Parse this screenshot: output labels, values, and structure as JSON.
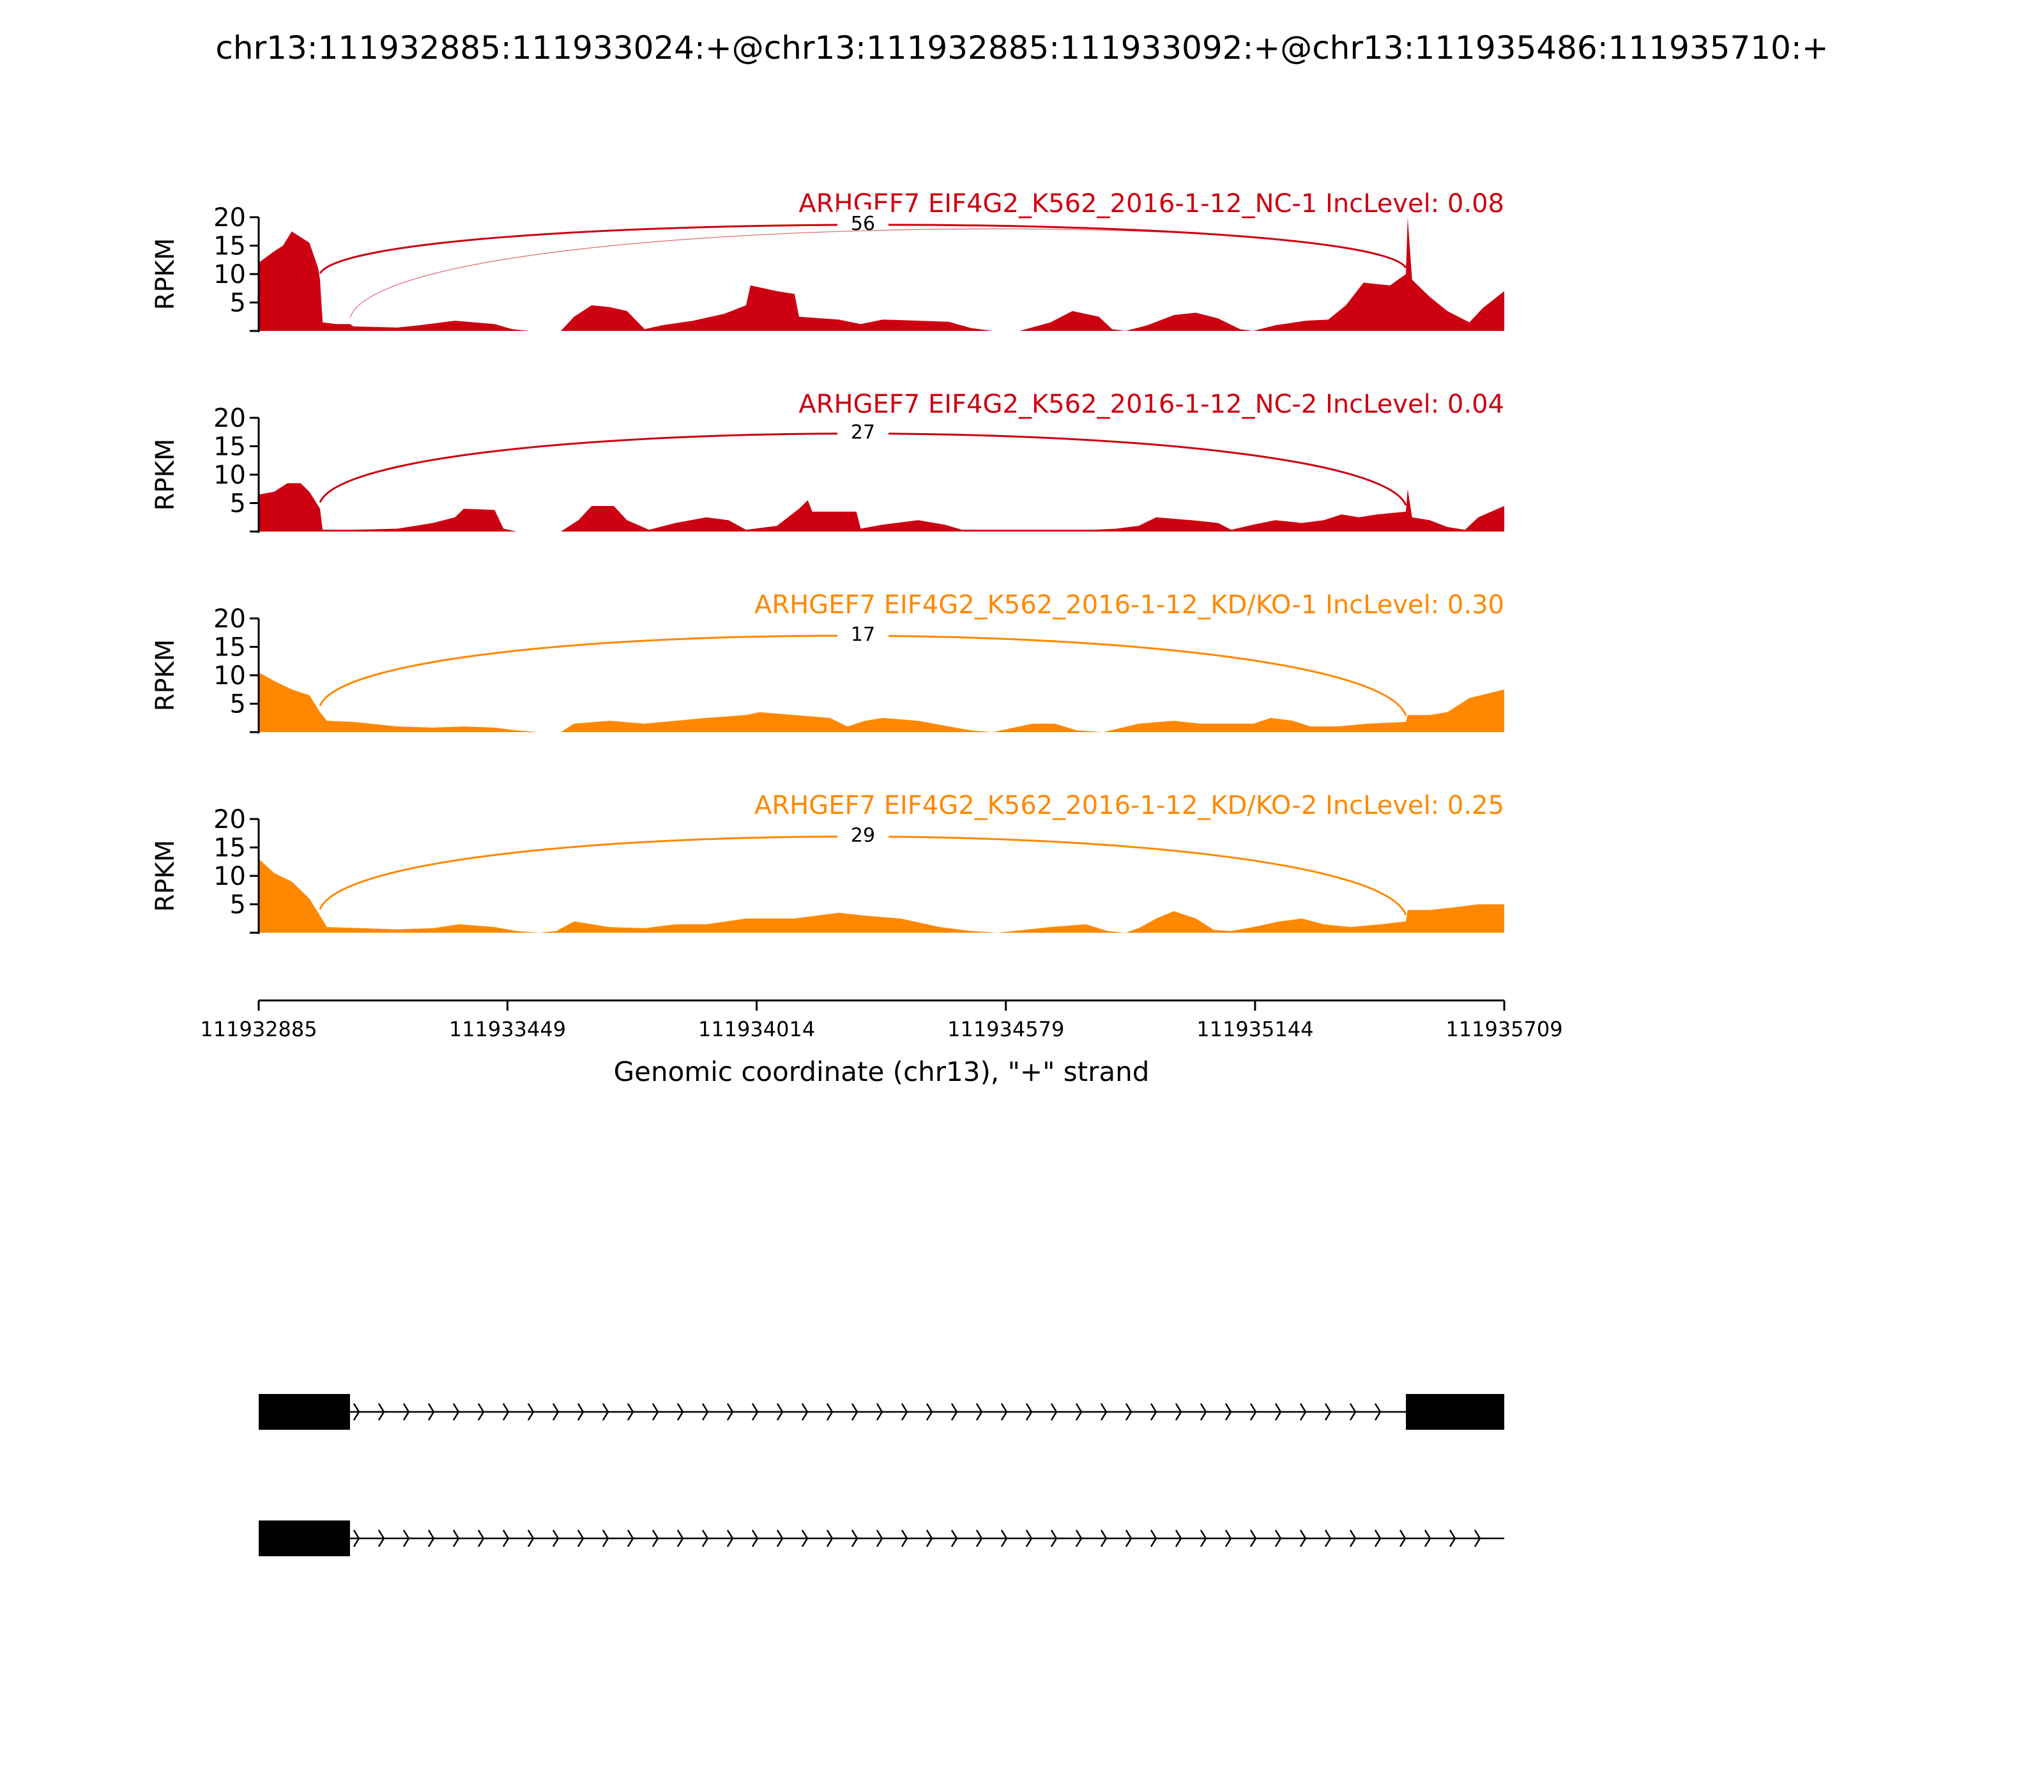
{
  "figure_title": "chr13:111932885:111933024:+@chr13:111932885:111933092:+@chr13:111935486:111935710:+",
  "colors": {
    "nc": "#cc0011",
    "kd": "#ff8800",
    "axis": "#000000",
    "gene_model": "#000000"
  },
  "chart_data": {
    "type": "area",
    "title": "chr13:111932885:111933024:+@chr13:111932885:111933092:+@chr13:111935486:111935710:+",
    "xlabel": "Genomic coordinate (chr13), \"+\" strand",
    "ylabel": "RPKM",
    "xlim": [
      111932885,
      111935709
    ],
    "x_ticks": [
      111932885,
      111933449,
      111934014,
      111934579,
      111935144,
      111935709
    ],
    "x_tick_labels": [
      "111932885",
      "111933449",
      "111934014",
      "111934579",
      "111935144",
      "111935709"
    ],
    "y_ticks": [
      5,
      10,
      15,
      20
    ],
    "y_tick_labels": [
      "5",
      "10",
      "15",
      "20"
    ],
    "ylim": [
      0,
      20
    ],
    "tracks": [
      {
        "label": "ARHGEF7 EIF4G2_K562_2016-1-12_NC-1 IncLevel: 0.08",
        "color": "#cc0011",
        "coverage": [
          [
            111932885,
            12
          ],
          [
            111932920,
            14
          ],
          [
            111932940,
            15
          ],
          [
            111932960,
            17.5
          ],
          [
            111932980,
            16.5
          ],
          [
            111933000,
            15.5
          ],
          [
            111933020,
            11
          ],
          [
            111933024,
            9
          ],
          [
            111933030,
            1.5
          ],
          [
            111933060,
            1.2
          ],
          [
            111933092,
            1.2
          ],
          [
            111933100,
            0.8
          ],
          [
            111933200,
            0.6
          ],
          [
            111933250,
            1.0
          ],
          [
            111933330,
            1.8
          ],
          [
            111933420,
            1.2
          ],
          [
            111933460,
            0.3
          ],
          [
            111933500,
            0
          ],
          [
            111933570,
            0
          ],
          [
            111933600,
            2.5
          ],
          [
            111933640,
            4.5
          ],
          [
            111933680,
            4.2
          ],
          [
            111933720,
            3.5
          ],
          [
            111933760,
            0.3
          ],
          [
            111933800,
            1.0
          ],
          [
            111933870,
            1.8
          ],
          [
            111933940,
            3.0
          ],
          [
            111933990,
            4.5
          ],
          [
            111934000,
            8.0
          ],
          [
            111934060,
            7.0
          ],
          [
            111934100,
            6.5
          ],
          [
            111934110,
            2.5
          ],
          [
            111934200,
            2.0
          ],
          [
            111934250,
            1.2
          ],
          [
            111934300,
            2.0
          ],
          [
            111934380,
            1.8
          ],
          [
            111934450,
            1.6
          ],
          [
            111934500,
            0.5
          ],
          [
            111934550,
            0
          ],
          [
            111934610,
            0
          ],
          [
            111934680,
            1.5
          ],
          [
            111934730,
            3.5
          ],
          [
            111934790,
            2.5
          ],
          [
            111934820,
            0.3
          ],
          [
            111934850,
            0
          ],
          [
            111934900,
            1.0
          ],
          [
            111934960,
            2.8
          ],
          [
            111935010,
            3.2
          ],
          [
            111935060,
            2.2
          ],
          [
            111935110,
            0.3
          ],
          [
            111935140,
            0
          ],
          [
            111935190,
            1.0
          ],
          [
            111935260,
            1.8
          ],
          [
            111935310,
            2.0
          ],
          [
            111935350,
            4.5
          ],
          [
            111935390,
            8.5
          ],
          [
            111935450,
            8.0
          ],
          [
            111935486,
            10
          ],
          [
            111935490,
            20
          ],
          [
            111935500,
            9.0
          ],
          [
            111935540,
            6.0
          ],
          [
            111935580,
            3.5
          ],
          [
            111935630,
            1.5
          ],
          [
            111935660,
            4.0
          ],
          [
            111935709,
            7.0
          ]
        ],
        "junctions": [
          {
            "start": 111933024,
            "end": 111935486,
            "count": 56,
            "count_label": "56",
            "weight": "bold"
          },
          {
            "start": 111933092,
            "end": 111935486,
            "count": null,
            "count_label": "",
            "weight": "thin"
          }
        ]
      },
      {
        "label": "ARHGEF7 EIF4G2_K562_2016-1-12_NC-2 IncLevel: 0.04",
        "color": "#cc0011",
        "coverage": [
          [
            111932885,
            6.5
          ],
          [
            111932920,
            7.0
          ],
          [
            111932950,
            8.5
          ],
          [
            111932980,
            8.5
          ],
          [
            111933000,
            7.0
          ],
          [
            111933024,
            4.0
          ],
          [
            111933030,
            0.3
          ],
          [
            111933100,
            0.3
          ],
          [
            111933200,
            0.5
          ],
          [
            111933280,
            1.5
          ],
          [
            111933330,
            2.5
          ],
          [
            111933350,
            4.0
          ],
          [
            111933420,
            3.8
          ],
          [
            111933440,
            0.5
          ],
          [
            111933470,
            0
          ],
          [
            111933570,
            0
          ],
          [
            111933610,
            2.0
          ],
          [
            111933640,
            4.5
          ],
          [
            111933690,
            4.5
          ],
          [
            111933720,
            2.0
          ],
          [
            111933770,
            0.3
          ],
          [
            111933830,
            1.5
          ],
          [
            111933900,
            2.5
          ],
          [
            111933950,
            2.0
          ],
          [
            111933990,
            0.3
          ],
          [
            111934060,
            1.0
          ],
          [
            111934110,
            4.0
          ],
          [
            111934130,
            5.5
          ],
          [
            111934140,
            3.5
          ],
          [
            111934240,
            3.5
          ],
          [
            111934250,
            0.5
          ],
          [
            111934300,
            1.2
          ],
          [
            111934380,
            2.0
          ],
          [
            111934440,
            1.2
          ],
          [
            111934480,
            0.3
          ],
          [
            111934550,
            0.3
          ],
          [
            111934700,
            0.3
          ],
          [
            111934780,
            0.3
          ],
          [
            111934830,
            0.5
          ],
          [
            111934880,
            1.0
          ],
          [
            111934920,
            2.5
          ],
          [
            111935000,
            2.0
          ],
          [
            111935060,
            1.5
          ],
          [
            111935090,
            0.3
          ],
          [
            111935140,
            1.2
          ],
          [
            111935190,
            2.0
          ],
          [
            111935250,
            1.5
          ],
          [
            111935300,
            2.0
          ],
          [
            111935340,
            3.0
          ],
          [
            111935380,
            2.5
          ],
          [
            111935420,
            3.0
          ],
          [
            111935486,
            3.5
          ],
          [
            111935490,
            7.5
          ],
          [
            111935500,
            2.5
          ],
          [
            111935540,
            2.0
          ],
          [
            111935580,
            0.8
          ],
          [
            111935620,
            0.3
          ],
          [
            111935650,
            2.5
          ],
          [
            111935709,
            4.5
          ]
        ],
        "junctions": [
          {
            "start": 111933024,
            "end": 111935486,
            "count": 27,
            "count_label": "27",
            "weight": "bold"
          }
        ]
      },
      {
        "label": "ARHGEF7 EIF4G2_K562_2016-1-12_KD/KO-1 IncLevel: 0.30",
        "color": "#ff8800",
        "coverage": [
          [
            111932885,
            10.5
          ],
          [
            111932920,
            9.0
          ],
          [
            111932960,
            7.5
          ],
          [
            111933000,
            6.5
          ],
          [
            111933024,
            3.5
          ],
          [
            111933040,
            2.0
          ],
          [
            111933100,
            1.8
          ],
          [
            111933200,
            1.0
          ],
          [
            111933280,
            0.8
          ],
          [
            111933350,
            1.0
          ],
          [
            111933420,
            0.8
          ],
          [
            111933470,
            0.3
          ],
          [
            111933520,
            0
          ],
          [
            111933570,
            0
          ],
          [
            111933600,
            1.5
          ],
          [
            111933680,
            2.0
          ],
          [
            111933760,
            1.5
          ],
          [
            111933830,
            2.0
          ],
          [
            111933900,
            2.5
          ],
          [
            111933990,
            3.0
          ],
          [
            111934020,
            3.5
          ],
          [
            111934100,
            3.0
          ],
          [
            111934180,
            2.5
          ],
          [
            111934220,
            1.0
          ],
          [
            111934260,
            2.0
          ],
          [
            111934300,
            2.5
          ],
          [
            111934380,
            2.0
          ],
          [
            111934450,
            1.0
          ],
          [
            111934500,
            0.3
          ],
          [
            111934550,
            0
          ],
          [
            111934580,
            0.5
          ],
          [
            111934640,
            1.5
          ],
          [
            111934690,
            1.5
          ],
          [
            111934740,
            0.3
          ],
          [
            111934800,
            0
          ],
          [
            111934880,
            1.5
          ],
          [
            111934960,
            2.0
          ],
          [
            111935020,
            1.5
          ],
          [
            111935080,
            1.5
          ],
          [
            111935140,
            1.5
          ],
          [
            111935180,
            2.5
          ],
          [
            111935230,
            2.0
          ],
          [
            111935270,
            1.0
          ],
          [
            111935330,
            1.0
          ],
          [
            111935400,
            1.5
          ],
          [
            111935486,
            1.8
          ],
          [
            111935490,
            3.0
          ],
          [
            111935540,
            3.0
          ],
          [
            111935580,
            3.5
          ],
          [
            111935630,
            6.0
          ],
          [
            111935709,
            7.5
          ]
        ],
        "junctions": [
          {
            "start": 111933024,
            "end": 111935486,
            "count": 17,
            "count_label": "17",
            "weight": "bold"
          }
        ]
      },
      {
        "label": "ARHGEF7 EIF4G2_K562_2016-1-12_KD/KO-2 IncLevel: 0.25",
        "color": "#ff8800",
        "coverage": [
          [
            111932885,
            13
          ],
          [
            111932920,
            10.5
          ],
          [
            111932960,
            9.0
          ],
          [
            111933000,
            6.0
          ],
          [
            111933024,
            3.0
          ],
          [
            111933040,
            1.0
          ],
          [
            111933120,
            0.8
          ],
          [
            111933200,
            0.6
          ],
          [
            111933280,
            0.8
          ],
          [
            111933340,
            1.5
          ],
          [
            111933420,
            1.0
          ],
          [
            111933470,
            0.3
          ],
          [
            111933520,
            0
          ],
          [
            111933560,
            0.3
          ],
          [
            111933600,
            2.0
          ],
          [
            111933680,
            1.0
          ],
          [
            111933760,
            0.8
          ],
          [
            111933830,
            1.5
          ],
          [
            111933900,
            1.5
          ],
          [
            111933990,
            2.5
          ],
          [
            111934100,
            2.5
          ],
          [
            111934150,
            3.0
          ],
          [
            111934200,
            3.5
          ],
          [
            111934260,
            3.0
          ],
          [
            111934340,
            2.5
          ],
          [
            111934430,
            1.0
          ],
          [
            111934500,
            0.3
          ],
          [
            111934560,
            0
          ],
          [
            111934620,
            0.5
          ],
          [
            111934680,
            1.0
          ],
          [
            111934760,
            1.5
          ],
          [
            111934810,
            0.3
          ],
          [
            111934850,
            0
          ],
          [
            111934880,
            0.8
          ],
          [
            111934920,
            2.5
          ],
          [
            111934960,
            3.8
          ],
          [
            111935010,
            2.5
          ],
          [
            111935050,
            0.5
          ],
          [
            111935090,
            0.3
          ],
          [
            111935140,
            1.0
          ],
          [
            111935200,
            2.0
          ],
          [
            111935250,
            2.5
          ],
          [
            111935300,
            1.5
          ],
          [
            111935360,
            1.0
          ],
          [
            111935430,
            1.5
          ],
          [
            111935486,
            2.0
          ],
          [
            111935490,
            4.0
          ],
          [
            111935540,
            4.0
          ],
          [
            111935600,
            4.5
          ],
          [
            111935650,
            5.0
          ],
          [
            111935709,
            5.0
          ]
        ],
        "junctions": [
          {
            "start": 111933024,
            "end": 111935486,
            "count": 29,
            "count_label": "29",
            "weight": "bold"
          }
        ]
      }
    ],
    "gene_models": [
      {
        "exons": [
          [
            111932885,
            111933092
          ],
          [
            111935486,
            111935709
          ]
        ],
        "strand": "+"
      },
      {
        "exons": [
          [
            111932885,
            111933092
          ]
        ],
        "strand": "+"
      }
    ]
  }
}
